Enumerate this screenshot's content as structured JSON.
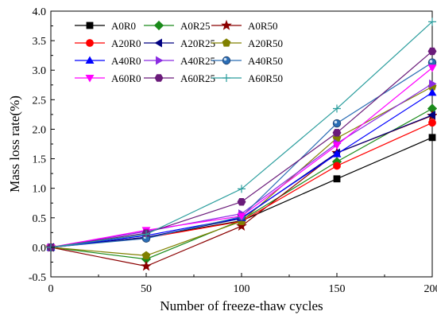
{
  "chart_data": {
    "type": "line",
    "title": "",
    "xlabel": "Number of freeze-thaw cycles",
    "ylabel": "Mass loss rate(%)",
    "x": [
      0,
      50,
      100,
      150,
      200
    ],
    "xlim": [
      0,
      200
    ],
    "ylim": [
      -0.5,
      4.0
    ],
    "xticks": [
      0,
      50,
      100,
      150,
      200
    ],
    "yticks": [
      -0.5,
      0.0,
      0.5,
      1.0,
      1.5,
      2.0,
      2.5,
      3.0,
      3.5,
      4.0
    ],
    "xtick_labels": [
      "0",
      "50",
      "100",
      "150",
      "200"
    ],
    "ytick_labels": [
      "-0.5",
      "0.0",
      "0.5",
      "1.0",
      "1.5",
      "2.0",
      "2.5",
      "3.0",
      "3.5",
      "4.0"
    ],
    "grid": false,
    "legend_position": "top-left",
    "legend_columns": 3,
    "series": [
      {
        "name": "A0R0",
        "color": "#000000",
        "marker": "square",
        "values": [
          0,
          0.17,
          0.45,
          1.16,
          1.86
        ]
      },
      {
        "name": "A0R25",
        "color": "#1a8a1a",
        "marker": "diamond",
        "values": [
          0,
          -0.2,
          0.46,
          1.45,
          2.35
        ]
      },
      {
        "name": "A0R50",
        "color": "#8b0000",
        "marker": "star",
        "values": [
          0,
          -0.32,
          0.36,
          1.6,
          2.23
        ]
      },
      {
        "name": "A20R0",
        "color": "#ff0000",
        "marker": "circle",
        "values": [
          0,
          0.16,
          0.44,
          1.38,
          2.11
        ]
      },
      {
        "name": "A20R25",
        "color": "#000080",
        "marker": "triangle-left",
        "values": [
          0,
          0.17,
          0.49,
          1.6,
          2.24
        ]
      },
      {
        "name": "A20R50",
        "color": "#808000",
        "marker": "pentagon",
        "values": [
          0,
          -0.14,
          0.44,
          1.85,
          2.72
        ]
      },
      {
        "name": "A40R0",
        "color": "#0000ff",
        "marker": "triangle-up",
        "values": [
          0,
          0.2,
          0.5,
          1.58,
          2.62
        ]
      },
      {
        "name": "A40R25",
        "color": "#8a2be2",
        "marker": "triangle-right",
        "values": [
          0,
          0.27,
          0.57,
          1.76,
          2.77
        ]
      },
      {
        "name": "A40R50",
        "color": "#2a6db5",
        "marker": "ball",
        "values": [
          0,
          0.15,
          0.52,
          2.1,
          3.13
        ]
      },
      {
        "name": "A60R0",
        "color": "#ff00ff",
        "marker": "triangle-down",
        "values": [
          0,
          0.29,
          0.53,
          1.73,
          3.04
        ]
      },
      {
        "name": "A60R25",
        "color": "#6a1b7a",
        "marker": "hexagon",
        "values": [
          0,
          0.24,
          0.77,
          1.94,
          3.32
        ]
      },
      {
        "name": "A60R50",
        "color": "#2a9d9d",
        "marker": "plus",
        "values": [
          0,
          0.22,
          0.99,
          2.35,
          3.82
        ]
      }
    ]
  }
}
